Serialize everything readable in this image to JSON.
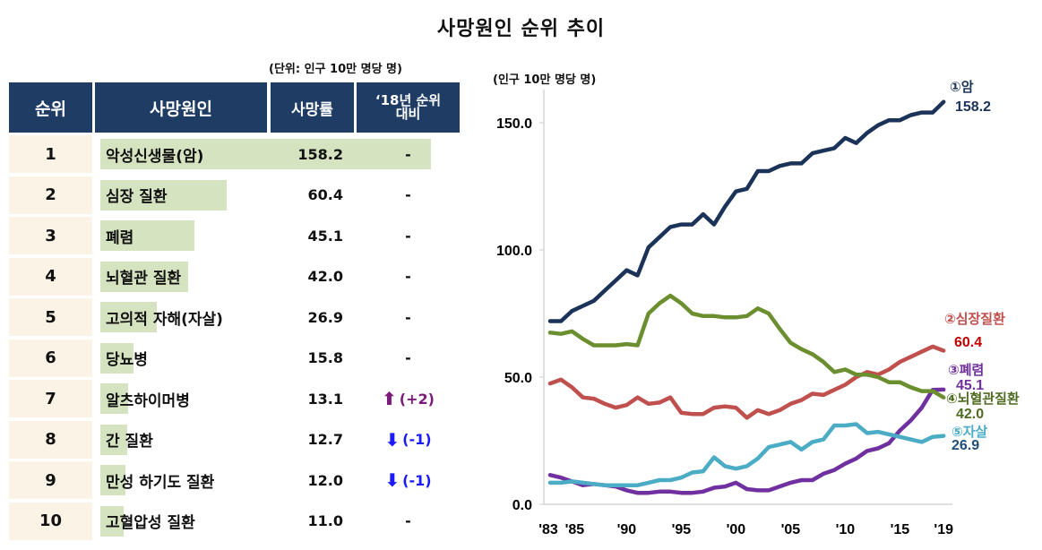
{
  "title": "사망원인 순위 추이",
  "table": {
    "unit": "(단위: 인구 10만 명당 명)",
    "headers": [
      "순위",
      "사망원인",
      "사망률",
      "‘18년 순위 대비"
    ],
    "rows": [
      {
        "rank": "1",
        "cause": "악성신생물(암)",
        "rate": 158.2,
        "change": "-",
        "dir": ""
      },
      {
        "rank": "2",
        "cause": "심장 질환",
        "rate": 60.4,
        "change": "-",
        "dir": ""
      },
      {
        "rank": "3",
        "cause": "폐렴",
        "rate": 45.1,
        "change": "-",
        "dir": ""
      },
      {
        "rank": "4",
        "cause": "뇌혈관 질환",
        "rate": 42.0,
        "change": "-",
        "dir": ""
      },
      {
        "rank": "5",
        "cause": "고의적 자해(자살)",
        "rate": 26.9,
        "change": "-",
        "dir": ""
      },
      {
        "rank": "6",
        "cause": "당뇨병",
        "rate": 15.8,
        "change": "-",
        "dir": ""
      },
      {
        "rank": "7",
        "cause": "알츠하이머병",
        "rate": 13.1,
        "change": "(+2)",
        "dir": "up"
      },
      {
        "rank": "8",
        "cause": "간 질환",
        "rate": 12.7,
        "change": "(-1)",
        "dir": "down"
      },
      {
        "rank": "9",
        "cause": "만성 하기도 질환",
        "rate": 12.0,
        "change": "(-1)",
        "dir": "down"
      },
      {
        "rank": "10",
        "cause": "고혈압성 질환",
        "rate": 11.0,
        "change": "-",
        "dir": ""
      }
    ],
    "colors": {
      "header": "#1e3c64",
      "bar": "#d6e3c1",
      "rank_bg": "#fbf3e6",
      "up": "#7b1a7b",
      "down": "#1a1aff"
    }
  },
  "chart_data": {
    "type": "line",
    "ylabel": "(인구 10만 명당 명)",
    "ylim": [
      0,
      160
    ],
    "yticks": [
      "0.0",
      "50.0",
      "100.0",
      "150.0"
    ],
    "ytick_values": [
      0,
      50,
      100,
      150
    ],
    "xticks": [
      "'83",
      "'85",
      "'90",
      "'95",
      "'00",
      "'05",
      "'10",
      "'15",
      "'19"
    ],
    "xtick_values": [
      1983,
      1985,
      1990,
      1995,
      2000,
      2005,
      2010,
      2015,
      2019
    ],
    "grid": false,
    "x": [
      1983,
      1984,
      1985,
      1986,
      1987,
      1988,
      1989,
      1990,
      1991,
      1992,
      1993,
      1994,
      1995,
      1996,
      1997,
      1998,
      1999,
      2000,
      2001,
      2002,
      2003,
      2004,
      2005,
      2006,
      2007,
      2008,
      2009,
      2010,
      2011,
      2012,
      2013,
      2014,
      2015,
      2016,
      2017,
      2018,
      2019
    ],
    "series": [
      {
        "name": "①암",
        "end_label": "158.2",
        "color": "#1b3358",
        "values": [
          72,
          72,
          76,
          78,
          80,
          84,
          88,
          92,
          90,
          101,
          105,
          109,
          110,
          110,
          114,
          110,
          117,
          123,
          124,
          131,
          131,
          133,
          134,
          134,
          138,
          139,
          140,
          144,
          142,
          146,
          149,
          151,
          151,
          153,
          154,
          154,
          158.2
        ]
      },
      {
        "name": "②심장질환",
        "end_label": "60.4",
        "color": "#c0504d",
        "values": [
          47.5,
          49,
          46,
          42,
          41.5,
          39.5,
          38,
          39,
          42,
          39.5,
          40,
          42,
          36,
          35.5,
          35.5,
          38,
          38.5,
          38,
          34,
          37,
          35.5,
          37,
          39.5,
          41,
          43.5,
          43,
          45,
          47,
          50,
          52,
          51,
          53,
          56,
          58,
          60,
          62,
          60.4
        ]
      },
      {
        "name": "③폐렴",
        "end_label": "45.1",
        "color": "#7030a0",
        "values": [
          11.5,
          10.5,
          9,
          7.5,
          8,
          7.5,
          7,
          5.5,
          4.5,
          4.5,
          5,
          5,
          4.5,
          4.5,
          5,
          6.5,
          7,
          8.5,
          6,
          5.5,
          5.5,
          7,
          8.5,
          9.5,
          9.5,
          12,
          13.5,
          16,
          18,
          21,
          22,
          24,
          29,
          33,
          38,
          45,
          45.1
        ]
      },
      {
        "name": "④뇌혈관질환",
        "end_label": "42.0",
        "color": "#6b8e2f",
        "values": [
          67.5,
          67,
          68,
          65,
          62.5,
          62.5,
          62.5,
          63,
          62.5,
          75,
          79,
          82,
          79,
          75,
          74,
          74,
          73.5,
          73.5,
          74,
          77,
          75,
          69,
          63.5,
          61,
          59,
          56,
          52,
          53,
          51,
          51,
          50,
          48,
          48,
          46,
          44.5,
          44.5,
          42.0
        ]
      },
      {
        "name": "⑤자살",
        "end_label": "26.9",
        "color": "#4bacc6",
        "values": [
          8.5,
          8.5,
          9,
          8.5,
          8,
          7.5,
          7.5,
          7.5,
          7.5,
          8.5,
          9.5,
          9.5,
          10.5,
          12.5,
          13,
          18.5,
          15,
          14,
          15,
          18,
          22.5,
          23.5,
          24.5,
          21.5,
          24.5,
          25.5,
          31,
          31,
          31.5,
          28,
          28.5,
          27.5,
          26.5,
          25.5,
          24.5,
          26.5,
          26.9
        ]
      }
    ]
  }
}
